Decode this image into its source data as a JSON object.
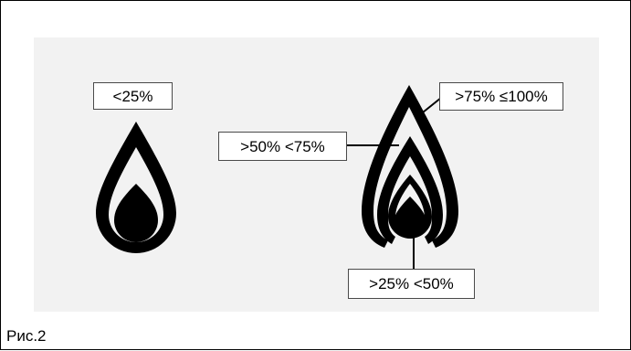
{
  "figure": {
    "caption": "Рис.2",
    "colors": {
      "panel_background": "#f2f2f2",
      "flame": "#000000",
      "label_border": "#4a4a4a"
    },
    "labels": {
      "below_25": "<25%",
      "from_25_to_50": ">25% <50%",
      "from_50_to_75": ">50% <75%",
      "from_75_to_100": ">75% ≤100%"
    }
  }
}
